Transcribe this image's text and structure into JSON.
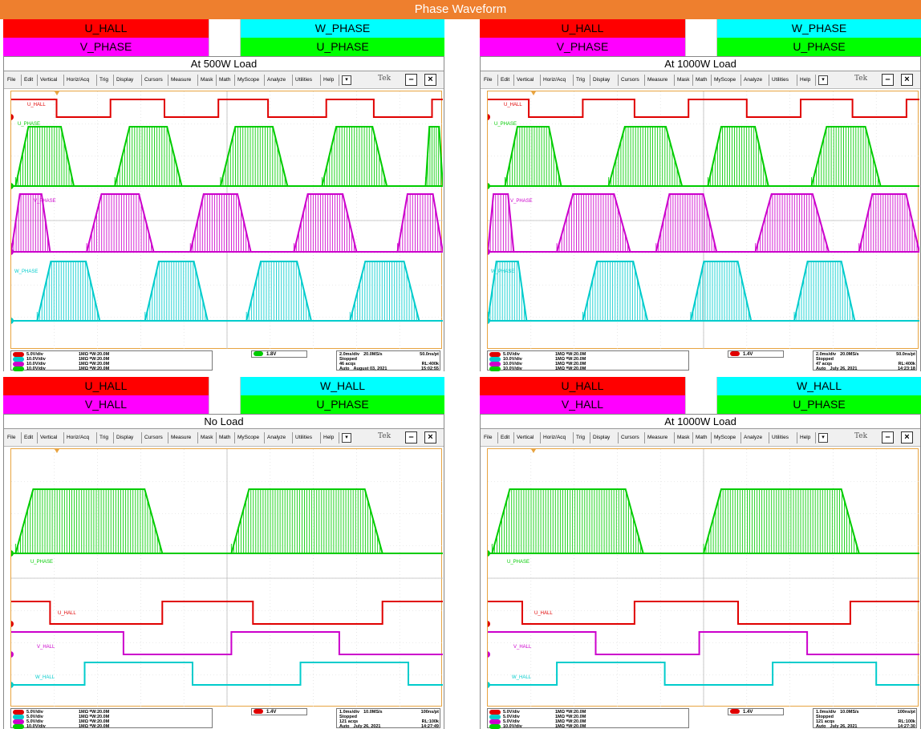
{
  "title": "Phase Waveform",
  "menu": [
    "File",
    "Edit",
    "Vertical",
    "Horiz/Acq",
    "Trig",
    "Display",
    "Cursors",
    "Measure",
    "Mask",
    "Math",
    "MyScope",
    "Analyze",
    "Utilities",
    "Help"
  ],
  "logo": "Tek",
  "colors": {
    "ch1": "#e00000",
    "ch2": "#00cccc",
    "ch3": "#cc00cc",
    "ch4": "#00cc00",
    "grid": "#d8d8d8",
    "frame": "#e8a441",
    "title_bg": "#ee7f2e"
  },
  "panels": [
    {
      "legend": {
        "left_top": "U_HALL",
        "right_top": "W_PHASE",
        "left_bottom": "V_PHASE",
        "right_bottom": "U_PHASE"
      },
      "subtitle": "At 500W Load",
      "channels": [
        {
          "label": "5.0V/div",
          "imp": "1MΩ ᴮW:20.0M",
          "color": "#e00000"
        },
        {
          "label": "10.0V/div",
          "imp": "1MΩ ᴮW:20.0M",
          "color": "#00cccc"
        },
        {
          "label": "10.0V/div",
          "imp": "1MΩ ᴮW:20.0M",
          "color": "#cc00cc"
        },
        {
          "label": "10.0V/div",
          "imp": "1MΩ ᴮW:20.0M",
          "color": "#00cc00"
        }
      ],
      "trigger": "1.8V",
      "timebase": {
        "div": "2.0ms/div",
        "rate": "20.0MS/s",
        "pt": "50.0ns/pt",
        "state": "Stopped",
        "acqs": "46 acqs",
        "rl": "RL:400k",
        "mode": "Auto",
        "date": "August 03, 2021",
        "time": "15:02:55"
      },
      "trace_labels": [
        "U_HALL",
        "U_PHASE",
        "V_PHASE",
        "W_PHASE"
      ]
    },
    {
      "legend": {
        "left_top": "U_HALL",
        "right_top": "W_PHASE",
        "left_bottom": "V_PHASE",
        "right_bottom": "U_PHASE"
      },
      "subtitle": "At 1000W Load",
      "channels": [
        {
          "label": "5.0V/div",
          "imp": "1MΩ ᴮW:20.0M",
          "color": "#e00000"
        },
        {
          "label": "10.0V/div",
          "imp": "1MΩ ᴮW:20.0M",
          "color": "#00cccc"
        },
        {
          "label": "10.0V/div",
          "imp": "1MΩ ᴮW:20.0M",
          "color": "#cc00cc"
        },
        {
          "label": "10.0V/div",
          "imp": "1MΩ ᴮW:20.0M",
          "color": "#00cc00"
        }
      ],
      "trigger": "1.4V",
      "timebase": {
        "div": "2.0ms/div",
        "rate": "20.0MS/s",
        "pt": "50.0ns/pt",
        "state": "Stopped",
        "acqs": "47 acqs",
        "rl": "RL:400k",
        "mode": "Auto",
        "date": "July 26, 2021",
        "time": "14:23:18"
      },
      "trace_labels": [
        "U_HALL",
        "U_PHASE",
        "V_PHASE",
        "W_PHASE"
      ]
    },
    {
      "legend": {
        "left_top": "U_HALL",
        "right_top": "W_HALL",
        "left_bottom": "V_HALL",
        "right_bottom": "U_PHASE"
      },
      "subtitle": "No Load",
      "channels": [
        {
          "label": "5.0V/div",
          "imp": "1MΩ ᴮW:20.0M",
          "color": "#e00000"
        },
        {
          "label": "5.0V/div",
          "imp": "1MΩ ᴮW:20.0M",
          "color": "#00cccc"
        },
        {
          "label": "5.0V/div",
          "imp": "1MΩ ᴮW:20.0M",
          "color": "#cc00cc"
        },
        {
          "label": "10.0V/div",
          "imp": "1MΩ ᴮW:20.0M",
          "color": "#00cc00"
        }
      ],
      "trigger": "1.4V",
      "timebase": {
        "div": "1.0ms/div",
        "rate": "10.0MS/s",
        "pt": "100ns/pt",
        "state": "Stopped",
        "acqs": "121 acqs",
        "rl": "RL:100k",
        "mode": "Auto",
        "date": "July 26, 2021",
        "time": "14:27:49"
      },
      "trace_labels": [
        "U_PHASE",
        "U_HALL",
        "V_HALL",
        "W_HALL"
      ]
    },
    {
      "legend": {
        "left_top": "U_HALL",
        "right_top": "W_HALL",
        "left_bottom": "V_HALL",
        "right_bottom": "U_PHASE"
      },
      "subtitle": "At 1000W Load",
      "channels": [
        {
          "label": "5.0V/div",
          "imp": "1MΩ ᴮW:20.0M",
          "color": "#e00000"
        },
        {
          "label": "5.0V/div",
          "imp": "1MΩ ᴮW:20.0M",
          "color": "#00cccc"
        },
        {
          "label": "5.0V/div",
          "imp": "1MΩ ᴮW:20.0M",
          "color": "#cc00cc"
        },
        {
          "label": "10.0V/div",
          "imp": "1MΩ ᴮW:20.0M",
          "color": "#00cc00"
        }
      ],
      "trigger": "1.4V",
      "timebase": {
        "div": "1.0ms/div",
        "rate": "10.0MS/s",
        "pt": "100ns/pt",
        "state": "Stopped",
        "acqs": "121 acqs",
        "rl": "RL:100k",
        "mode": "Auto",
        "date": "July 26, 2021",
        "time": "14:27:30"
      },
      "trace_labels": [
        "U_PHASE",
        "U_HALL",
        "V_HALL",
        "W_HALL"
      ]
    }
  ],
  "chart_data": [
    {
      "type": "line",
      "subtitle": "At 500W Load",
      "time_per_div_ms": 2.0,
      "divisions": 10,
      "series": [
        {
          "name": "U_HALL",
          "kind": "square",
          "edges_div": [
            0.0,
            1.05,
            2.3,
            3.55,
            4.8,
            5.95,
            7.3,
            8.4,
            9.75
          ],
          "start_high": true
        },
        {
          "name": "U_PHASE",
          "kind": "pwm",
          "active_div": [
            [
              0.1,
              1.45
            ],
            [
              2.4,
              3.95
            ],
            [
              4.85,
              6.4
            ],
            [
              7.2,
              8.7
            ],
            [
              9.6,
              10
            ]
          ]
        },
        {
          "name": "V_PHASE",
          "kind": "pwm",
          "active_div": [
            [
              0,
              0.9
            ],
            [
              1.75,
              3.3
            ],
            [
              4.15,
              5.55
            ],
            [
              6.55,
              8.0
            ],
            [
              8.95,
              10
            ]
          ]
        },
        {
          "name": "W_PHASE",
          "kind": "pwm",
          "active_div": [
            [
              0.6,
              2.05
            ],
            [
              3.1,
              4.55
            ],
            [
              5.45,
              6.95
            ],
            [
              7.85,
              9.45
            ]
          ]
        }
      ]
    },
    {
      "type": "line",
      "subtitle": "At 1000W Load",
      "time_per_div_ms": 2.0,
      "divisions": 10,
      "series": [
        {
          "name": "U_HALL",
          "kind": "square",
          "edges_div": [
            0.0,
            0.95,
            2.2,
            3.4,
            4.65,
            6.0,
            7.25,
            8.45,
            9.7
          ],
          "start_high": true
        },
        {
          "name": "U_PHASE",
          "kind": "pwm",
          "active_div": [
            [
              0.4,
              1.7
            ],
            [
              2.8,
              4.5
            ],
            [
              5.1,
              6.5
            ],
            [
              7.5,
              9.1
            ]
          ]
        },
        {
          "name": "V_PHASE",
          "kind": "pwm",
          "active_div": [
            [
              0,
              0.6
            ],
            [
              1.6,
              3.3
            ],
            [
              3.9,
              5.3
            ],
            [
              6.2,
              7.9
            ],
            [
              8.6,
              10
            ]
          ]
        },
        {
          "name": "W_PHASE",
          "kind": "pwm",
          "active_div": [
            [
              0,
              0.9
            ],
            [
              2.2,
              3.7
            ],
            [
              4.7,
              6.1
            ],
            [
              7.1,
              8.5
            ]
          ]
        }
      ]
    },
    {
      "type": "line",
      "subtitle": "No Load",
      "time_per_div_ms": 1.0,
      "divisions": 10,
      "series": [
        {
          "name": "U_PHASE",
          "kind": "pwm",
          "active_div": [
            [
              0.1,
              3.5
            ],
            [
              5.1,
              8.6
            ]
          ]
        },
        {
          "name": "U_HALL",
          "kind": "square",
          "edges_div": [
            0.0,
            0.9,
            3.5,
            5.6,
            8.6
          ],
          "start_high": true
        },
        {
          "name": "V_HALL",
          "kind": "square",
          "edges_div": [
            0.0,
            2.6,
            5.1,
            7.6
          ],
          "start_high": true
        },
        {
          "name": "W_HALL",
          "kind": "square",
          "edges_div": [
            0.0,
            1.7,
            4.2,
            6.7,
            9.2
          ],
          "start_high": false
        }
      ]
    },
    {
      "type": "line",
      "subtitle": "At 1000W Load",
      "time_per_div_ms": 1.0,
      "divisions": 10,
      "series": [
        {
          "name": "U_PHASE",
          "kind": "pwm",
          "active_div": [
            [
              0.1,
              3.6
            ],
            [
              5.0,
              8.6
            ]
          ]
        },
        {
          "name": "U_HALL",
          "kind": "square",
          "edges_div": [
            0.0,
            0.8,
            3.4,
            5.8,
            8.4
          ],
          "start_high": true
        },
        {
          "name": "V_HALL",
          "kind": "square",
          "edges_div": [
            0.0,
            2.5,
            4.9,
            7.4
          ],
          "start_high": true
        },
        {
          "name": "W_HALL",
          "kind": "square",
          "edges_div": [
            0.0,
            1.6,
            4.1,
            6.6,
            9.0
          ],
          "start_high": false
        }
      ]
    }
  ]
}
